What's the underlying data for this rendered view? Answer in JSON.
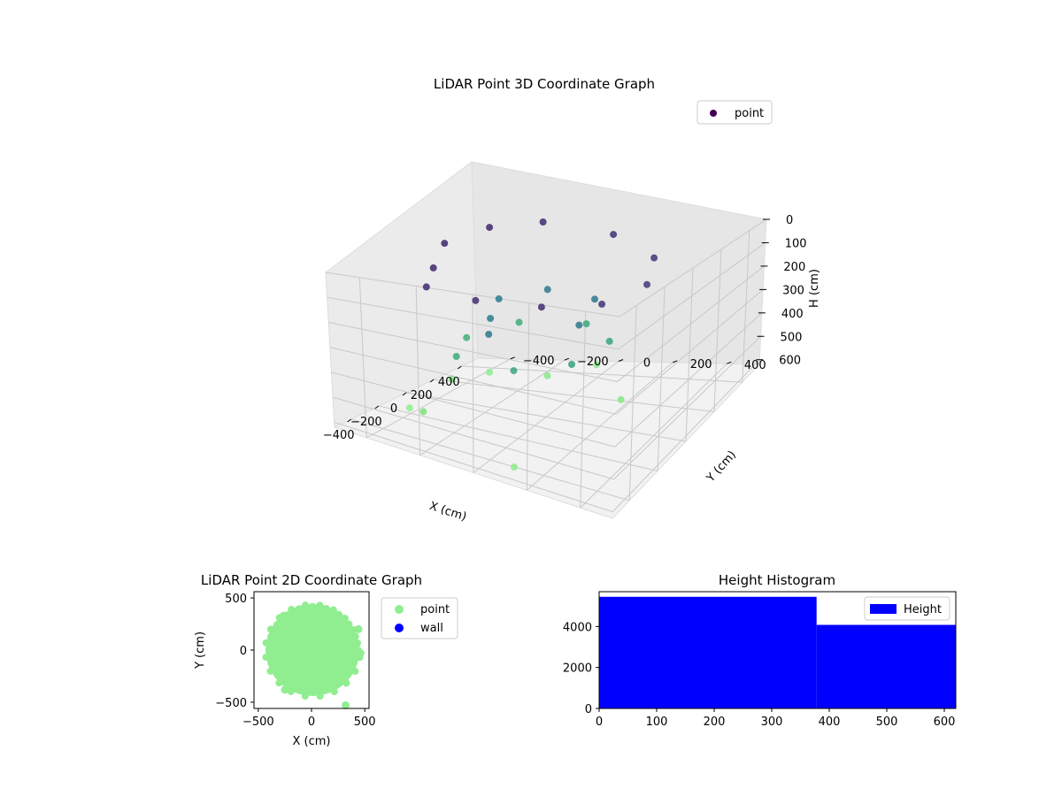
{
  "chart_data": [
    {
      "type": "scatter",
      "title": "LiDAR Point 3D Coordinate Graph",
      "xlabel": "X (cm)",
      "ylabel": "Y (cm)",
      "zlabel": "H (cm)",
      "legend": [
        "point"
      ],
      "legend_placement": "top-right",
      "xticks": [
        -400,
        -200,
        0,
        200,
        400
      ],
      "yticks": [
        -400,
        -200,
        0,
        200,
        400
      ],
      "zticks": [
        0,
        100,
        200,
        300,
        400,
        500,
        600
      ],
      "xlim": [
        -520,
        520
      ],
      "ylim": [
        -520,
        520
      ],
      "zlim": [
        0,
        620
      ],
      "z_inverted": true,
      "grid": true,
      "colormap": "viridis",
      "series": [
        {
          "name": "point",
          "description": "dense upper ring near H 60-200, inner cylinder near H 330-420, sparse floor points near H 560-620",
          "points": [
            [
              -350,
              -250,
              75
            ],
            [
              -200,
              -300,
              70
            ],
            [
              0,
              -360,
              65
            ],
            [
              200,
              -300,
              70
            ],
            [
              340,
              -180,
              80
            ],
            [
              360,
              60,
              90
            ],
            [
              250,
              260,
              100
            ],
            [
              40,
              340,
              105
            ],
            [
              -200,
              300,
              95
            ],
            [
              -330,
              150,
              85
            ],
            [
              -380,
              -60,
              80
            ],
            [
              -250,
              -80,
              250
            ],
            [
              -100,
              -150,
              260
            ],
            [
              60,
              -200,
              255
            ],
            [
              190,
              -90,
              250
            ],
            [
              150,
              100,
              240
            ],
            [
              -60,
              150,
              245
            ],
            [
              -190,
              -230,
              380
            ],
            [
              20,
              -300,
              395
            ],
            [
              200,
              -200,
              385
            ],
            [
              230,
              30,
              370
            ],
            [
              100,
              180,
              360
            ],
            [
              -130,
              160,
              355
            ],
            [
              -230,
              0,
              370
            ],
            [
              -300,
              -300,
              560
            ],
            [
              100,
              -400,
              580
            ],
            [
              300,
              -150,
              600
            ],
            [
              150,
              200,
              590
            ],
            [
              -420,
              100,
              610
            ],
            [
              420,
              -30,
              595
            ],
            [
              -150,
              -430,
              620
            ],
            [
              330,
              -380,
              615
            ]
          ]
        }
      ]
    },
    {
      "type": "scatter",
      "title": "LiDAR Point 2D Coordinate Graph",
      "xlabel": "X (cm)",
      "ylabel": "Y (cm)",
      "xticks": [
        -500,
        0,
        500
      ],
      "yticks": [
        -500,
        0,
        500
      ],
      "xlim": [
        -540,
        540
      ],
      "ylim": [
        -560,
        560
      ],
      "legend": [
        "point",
        "wall"
      ],
      "legend_placement": "outside right",
      "series": [
        {
          "name": "point",
          "color": "#90ee90",
          "description": "filled disc of points centered near (10, 0) with radius about 440 cm",
          "center": [
            10,
            0
          ],
          "radius": 440,
          "outliers": [
            [
              -260,
              330
            ],
            [
              460,
              -30
            ],
            [
              -250,
              -380
            ],
            [
              320,
              -530
            ],
            [
              440,
              200
            ]
          ]
        },
        {
          "name": "wall",
          "color": "#0000ff",
          "points": []
        }
      ]
    },
    {
      "type": "bar",
      "title": "Height Histogram",
      "xlabel": "",
      "ylabel": "",
      "xticks": [
        0,
        100,
        200,
        300,
        400,
        500,
        600
      ],
      "yticks": [
        0,
        2000,
        4000
      ],
      "xlim": [
        0,
        620
      ],
      "ylim": [
        0,
        5700
      ],
      "legend": [
        "Height"
      ],
      "legend_placement": "top-right",
      "color": "#0000ff",
      "bins": [
        {
          "from": 0,
          "to": 378,
          "value": 5450
        },
        {
          "from": 378,
          "to": 620,
          "value": 4080
        }
      ]
    }
  ]
}
